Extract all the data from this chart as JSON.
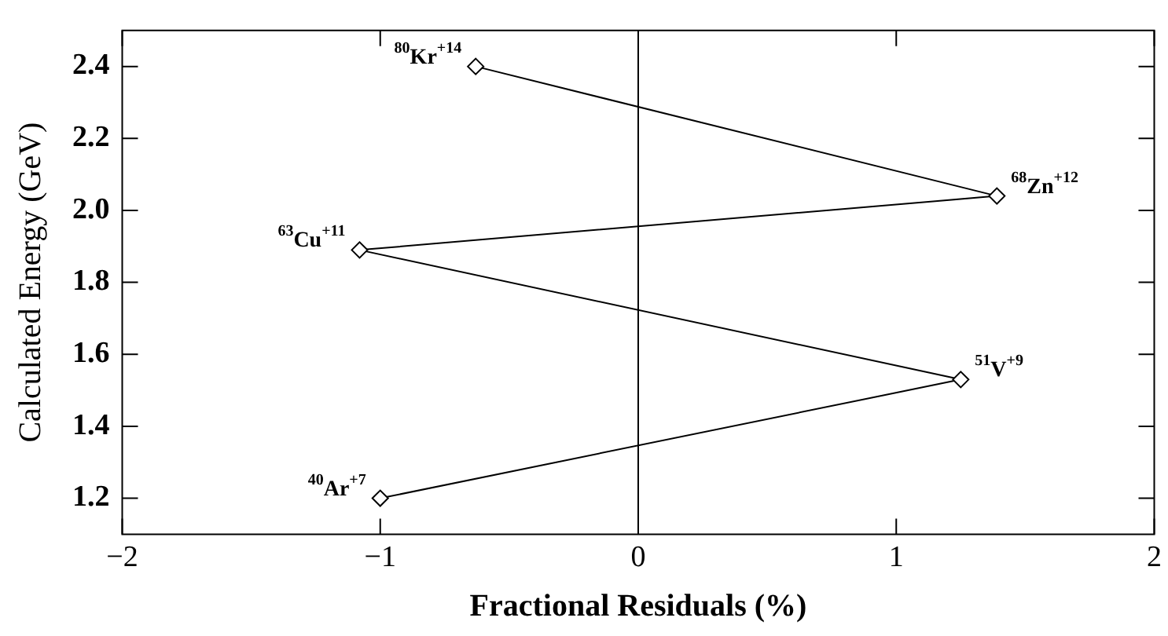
{
  "chart_data": {
    "type": "line",
    "xlabel": "Fractional Residuals (%)",
    "ylabel": "Calculated Energy (GeV)",
    "series": [
      {
        "color": "#000000",
        "x": [
          -0.63,
          1.39,
          -1.08,
          1.25,
          -1.0
        ],
        "values": [
          2.4,
          2.04,
          1.89,
          1.53,
          1.2
        ]
      }
    ],
    "xlim": [
      -2,
      2
    ],
    "xticks": [
      {
        "value": -2,
        "label": "−2"
      },
      {
        "value": -1,
        "label": "−1"
      },
      0,
      1,
      2
    ],
    "ylim": [
      1.1,
      2.5
    ],
    "yticks": [
      {
        "value": 1.2,
        "label": "1.2"
      },
      {
        "value": 1.4,
        "label": "1.4"
      },
      {
        "value": 1.6,
        "label": "1.6"
      },
      {
        "value": 1.8,
        "label": "1.8"
      },
      {
        "value": 2.0,
        "label": "2.0"
      },
      {
        "value": 2.2,
        "label": "2.2"
      },
      {
        "value": 2.4,
        "label": "2.4"
      }
    ],
    "ref_lines": [
      {
        "axis": "x",
        "value": 0,
        "color": "#000000"
      }
    ],
    "annotations": [
      {
        "text": "$^{80}$Kr$^{+14}$",
        "x": -0.63,
        "y": 2.4
      },
      {
        "text": "$^{68}$Zn$^{+12}$",
        "x": 1.39,
        "y": 2.04
      },
      {
        "text": "$^{63}$Cu$^{+11}$",
        "x": -1.08,
        "y": 1.89
      },
      {
        "text": "$^{51}$V$^{+9}$",
        "x": 1.25,
        "y": 1.53
      },
      {
        "text": "$^{40}$Ar$^{+7}$",
        "x": -1.0,
        "y": 1.2
      }
    ],
    "grid": false,
    "legend": false,
    "marker": "diamond",
    "line_style": "solid"
  }
}
